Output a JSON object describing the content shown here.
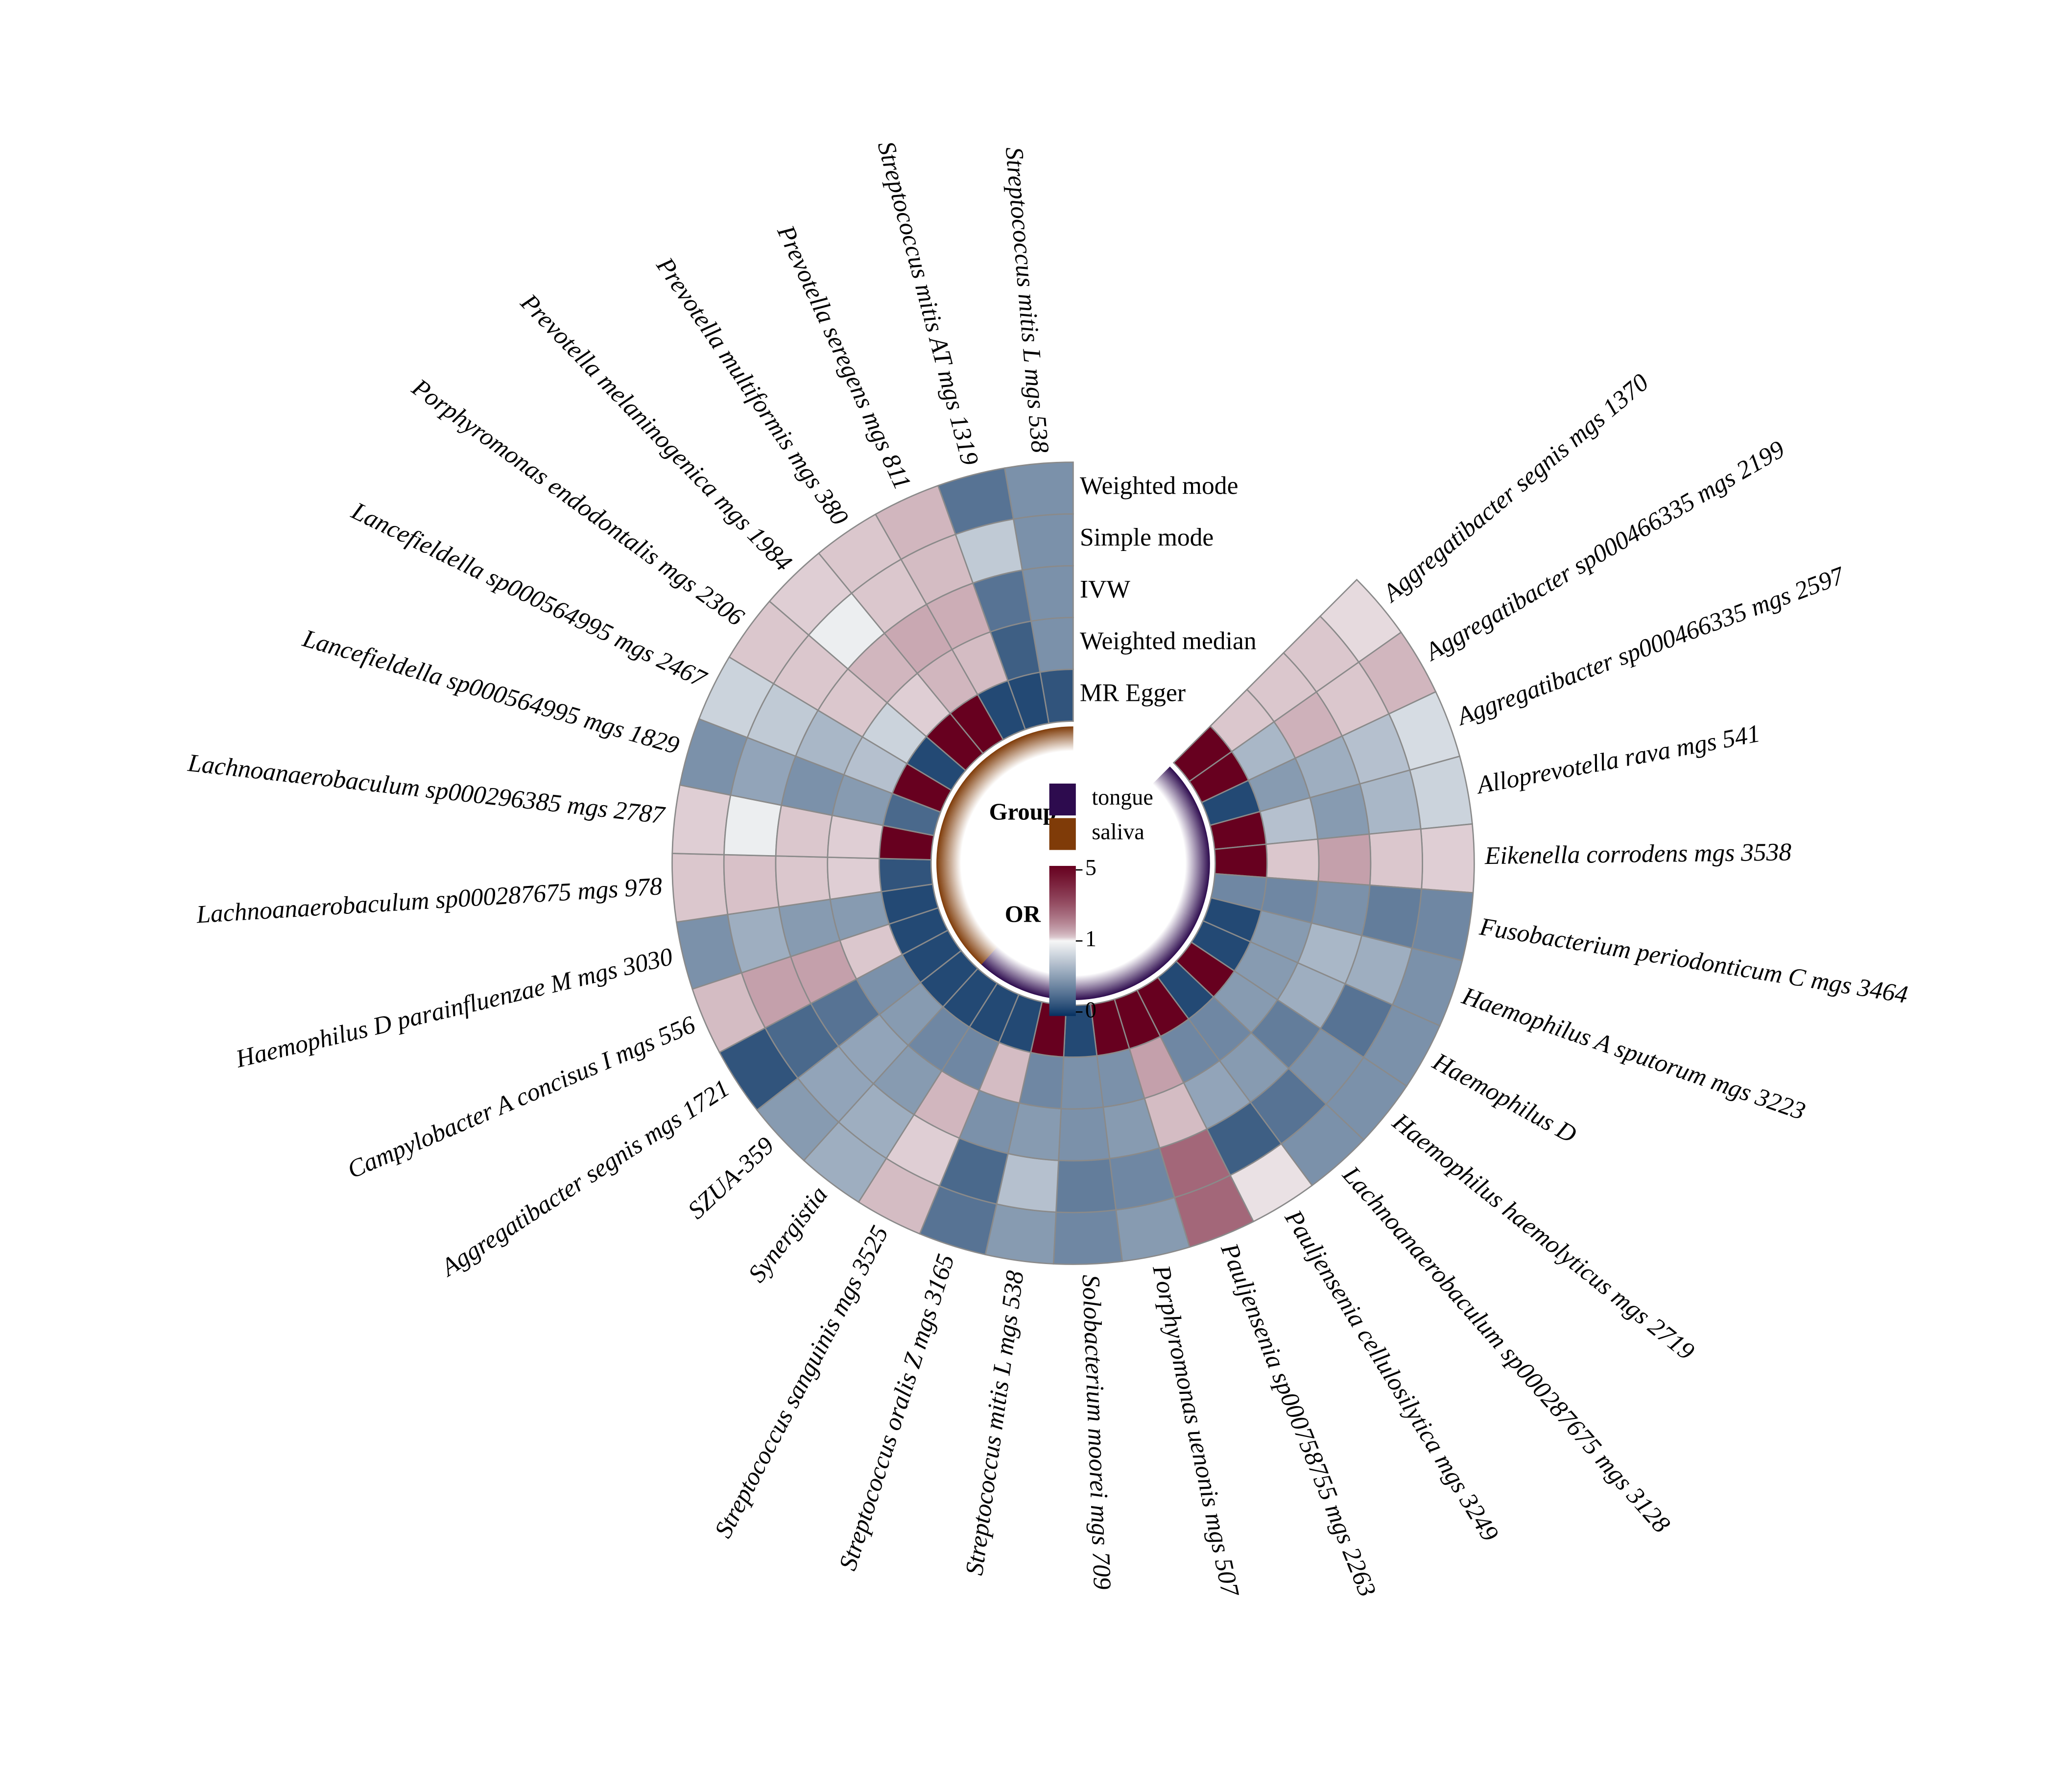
{
  "chart_data": {
    "type": "radial_heatmap",
    "categories": [
      "Aggregatibacter segnis mgs 1370",
      "Aggregatibacter sp000466335 mgs 2199",
      "Aggregatibacter sp000466335 mgs 2597",
      "Alloprevotella rava mgs 541",
      "Eikenella corrodens mgs 3538",
      "Fusobacterium periodonticum C mgs 3464",
      "Haemophilus A sputorum mgs 3223",
      "Haemophilus D",
      "Haemophilus haemolyticus mgs 2719",
      "Lachnoanaerobaculum sp000287675 mgs 3128",
      "Pauljensenia cellulosilytica mgs 3249",
      "Pauljensenia sp000758755 mgs 2263",
      "Porphyromonas uenonis mgs 507",
      "Solobacterium moorei mgs 709",
      "Streptococcus mitis L mgs  538",
      "Streptococcus oralis Z mgs 3165",
      "Streptococcus sanguinis mgs 3525",
      "Synergistia",
      "SZUA-359",
      "Aggregatibacter segnis mgs 1721",
      "Campylobacter A concisus I mgs 556",
      "Haemophilus D parainfluenzae M mgs 3030",
      "Lachnoanaerobaculum sp000287675 mgs 978",
      "Lachnoanaerobaculum sp000296385 mgs 2787",
      "Lancefieldella sp000564995 mgs 1829",
      "Lancefieldella sp000564995 mgs 2467",
      "Porphyromonas endodontalis mgs 2306",
      "Prevotella melaninogenica mgs 1984",
      "Prevotella multiformis mgs 380",
      "Prevotella seregens mgs 811",
      "Streptococcus mitis AT mgs 1319",
      "Streptococcus mitis L mgs 538"
    ],
    "groups": [
      "tongue",
      "tongue",
      "tongue",
      "tongue",
      "tongue",
      "tongue",
      "tongue",
      "tongue",
      "tongue",
      "tongue",
      "tongue",
      "tongue",
      "tongue",
      "tongue",
      "tongue",
      "tongue",
      "tongue",
      "tongue",
      "saliva",
      "saliva",
      "saliva",
      "saliva",
      "saliva",
      "saliva",
      "saliva",
      "saliva",
      "saliva",
      "saliva",
      "saliva",
      "saliva",
      "saliva",
      "saliva"
    ],
    "group_legend": {
      "title": "Group",
      "names": [
        "tongue",
        "saliva"
      ],
      "colors": [
        "#2d0b4e",
        "#7f3b08"
      ]
    },
    "series": [
      {
        "name": "Weighted mode",
        "values": [
          1.08,
          1.35,
          0.85,
          0.8,
          1.15,
          0.4,
          0.45,
          0.45,
          0.45,
          0.45,
          1.05,
          2.5,
          0.5,
          0.4,
          0.5,
          0.3,
          1.3,
          0.6,
          0.5,
          0.15,
          1.3,
          0.45,
          1.2,
          1.15,
          0.45,
          0.8,
          1.2,
          1.15,
          1.2,
          1.35,
          0.3,
          0.45
        ]
      },
      {
        "name": "Simple mode",
        "values": [
          1.2,
          1.2,
          0.7,
          0.65,
          1.2,
          0.35,
          0.6,
          0.3,
          0.45,
          0.3,
          0.2,
          2.5,
          0.4,
          0.35,
          0.7,
          0.25,
          1.15,
          0.6,
          0.55,
          0.25,
          1.6,
          0.6,
          1.25,
          0.95,
          0.55,
          0.75,
          1.2,
          0.95,
          1.2,
          1.3,
          0.75,
          0.45
        ]
      },
      {
        "name": "IVW",
        "values": [
          1.2,
          1.4,
          0.6,
          0.5,
          1.6,
          0.45,
          0.65,
          0.6,
          0.35,
          0.5,
          0.55,
          1.3,
          0.5,
          0.45,
          0.5,
          0.45,
          1.35,
          0.5,
          0.55,
          0.3,
          1.6,
          0.5,
          1.2,
          1.2,
          0.45,
          0.65,
          1.2,
          1.35,
          1.5,
          1.45,
          0.3,
          0.45
        ]
      },
      {
        "name": "Weighted median",
        "values": [
          1.2,
          0.65,
          0.5,
          0.7,
          1.2,
          0.4,
          0.5,
          0.5,
          0.5,
          0.4,
          0.4,
          1.6,
          0.45,
          0.45,
          0.4,
          1.3,
          0.4,
          0.4,
          0.5,
          0.45,
          1.2,
          0.5,
          1.15,
          1.15,
          0.5,
          0.7,
          0.8,
          1.15,
          1.35,
          1.3,
          0.2,
          0.45
        ]
      },
      {
        "name": "MR Egger",
        "values": [
          5,
          5,
          0.1,
          5,
          5,
          0.4,
          0.1,
          0.1,
          5,
          0.1,
          5,
          5,
          5,
          0.1,
          5,
          0.1,
          0.1,
          0.1,
          0.1,
          0.1,
          0.1,
          0.1,
          0.15,
          5,
          0.25,
          5,
          0.1,
          5,
          5,
          0.1,
          0.1,
          0.15
        ]
      }
    ],
    "colorbar": {
      "title": "OR",
      "ticks": [
        5,
        1,
        0
      ],
      "clim": [
        0,
        5
      ],
      "colors": [
        "#053061",
        "#f7f7f7",
        "#67001f"
      ]
    }
  }
}
